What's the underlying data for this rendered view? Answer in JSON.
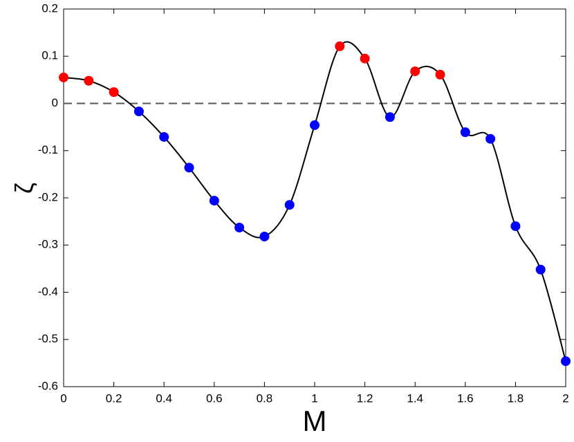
{
  "chart_data": {
    "type": "line",
    "x_label": "M",
    "y_label": "ζ",
    "x": [
      0,
      0.1,
      0.2,
      0.3,
      0.4,
      0.5,
      0.6,
      0.7,
      0.8,
      0.9,
      1.0,
      1.1,
      1.2,
      1.3,
      1.4,
      1.5,
      1.6,
      1.7,
      1.8,
      1.9,
      2.0
    ],
    "values": [
      0.055,
      0.048,
      0.024,
      -0.017,
      -0.071,
      -0.136,
      -0.206,
      -0.263,
      -0.282,
      -0.215,
      -0.046,
      0.121,
      0.095,
      -0.029,
      0.068,
      0.061,
      -0.061,
      -0.075,
      -0.26,
      -0.352,
      -0.546
    ],
    "line_color": "#000000",
    "positive_color": "#ff0000",
    "negative_color": "#0000ff",
    "reference_line": 0,
    "reference_color": "#555555",
    "xlim": [
      0,
      2
    ],
    "ylim": [
      -0.6,
      0.2
    ],
    "xticks": [
      0,
      0.2,
      0.4,
      0.6,
      0.8,
      1,
      1.2,
      1.4,
      1.6,
      1.8,
      2
    ],
    "yticks": [
      -0.6,
      -0.5,
      -0.4,
      -0.3,
      -0.2,
      -0.1,
      0,
      0.1,
      0.2
    ]
  }
}
